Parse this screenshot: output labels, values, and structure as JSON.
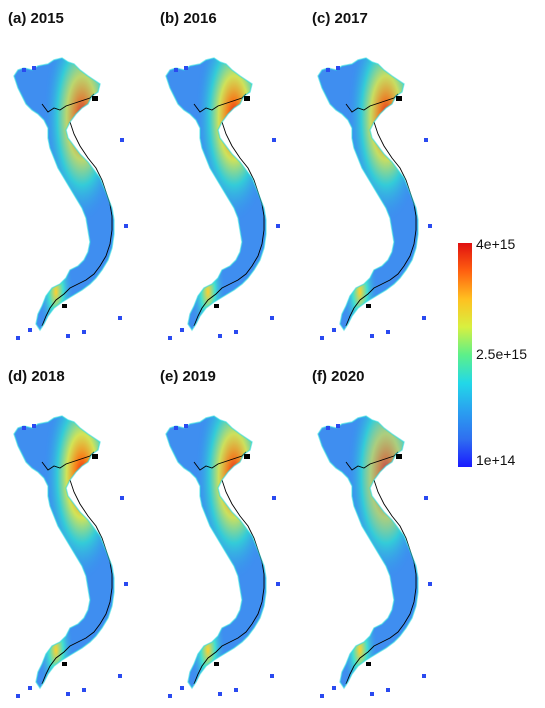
{
  "panels": [
    {
      "label": "(a) 2015",
      "intensity": 0.82
    },
    {
      "label": "(b) 2016",
      "intensity": 0.95
    },
    {
      "label": "(c) 2017",
      "intensity": 0.9
    },
    {
      "label": "(d) 2018",
      "intensity": 0.97
    },
    {
      "label": "(e) 2019",
      "intensity": 0.93
    },
    {
      "label": "(f) 2020",
      "intensity": 0.72
    }
  ],
  "colorbar": {
    "max_label": "4e+15",
    "mid_label": "2.5e+15",
    "min_label": "1e+14",
    "colors": [
      "#1a1aff",
      "#2f6ff0",
      "#2aa0f0",
      "#22d8e8",
      "#5cf08a",
      "#d8f040",
      "#ffc020",
      "#ff6010",
      "#e01010"
    ]
  }
}
